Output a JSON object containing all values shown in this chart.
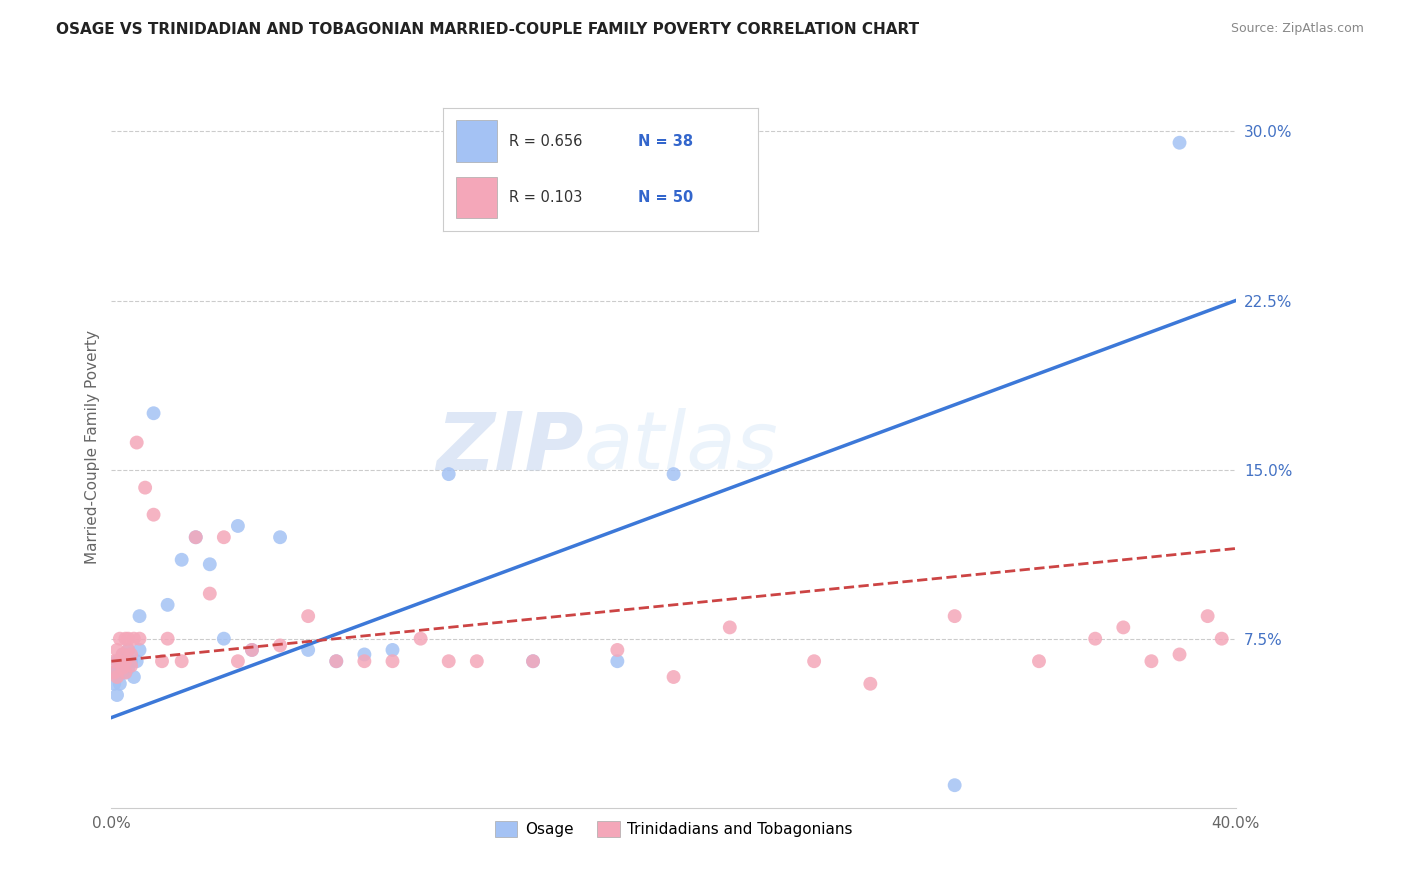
{
  "title": "OSAGE VS TRINIDADIAN AND TOBAGONIAN MARRIED-COUPLE FAMILY POVERTY CORRELATION CHART",
  "source": "Source: ZipAtlas.com",
  "ylabel": "Married-Couple Family Poverty",
  "xlim": [
    0.0,
    0.4
  ],
  "ylim": [
    0.0,
    0.32
  ],
  "y_ticks_right": [
    0.075,
    0.15,
    0.225,
    0.3
  ],
  "y_tick_labels_right": [
    "7.5%",
    "15.0%",
    "22.5%",
    "30.0%"
  ],
  "blue_color": "#a4c2f4",
  "pink_color": "#f4a7b9",
  "blue_line_color": "#3c78d8",
  "pink_line_color": "#cc4444",
  "watermark": "ZIPAtlas",
  "osage_x": [
    0.001,
    0.001,
    0.002,
    0.002,
    0.002,
    0.003,
    0.003,
    0.003,
    0.004,
    0.004,
    0.005,
    0.005,
    0.006,
    0.006,
    0.007,
    0.008,
    0.009,
    0.01,
    0.01,
    0.015,
    0.02,
    0.025,
    0.03,
    0.035,
    0.04,
    0.045,
    0.05,
    0.06,
    0.07,
    0.08,
    0.09,
    0.1,
    0.12,
    0.15,
    0.18,
    0.2,
    0.3,
    0.38
  ],
  "osage_y": [
    0.055,
    0.06,
    0.05,
    0.06,
    0.065,
    0.055,
    0.06,
    0.065,
    0.06,
    0.068,
    0.06,
    0.065,
    0.062,
    0.07,
    0.065,
    0.058,
    0.065,
    0.07,
    0.085,
    0.175,
    0.09,
    0.11,
    0.12,
    0.108,
    0.075,
    0.125,
    0.07,
    0.12,
    0.07,
    0.065,
    0.068,
    0.07,
    0.148,
    0.065,
    0.065,
    0.148,
    0.01,
    0.295
  ],
  "tnt_x": [
    0.001,
    0.001,
    0.002,
    0.002,
    0.003,
    0.003,
    0.004,
    0.004,
    0.005,
    0.005,
    0.005,
    0.006,
    0.006,
    0.007,
    0.007,
    0.008,
    0.009,
    0.01,
    0.012,
    0.015,
    0.018,
    0.02,
    0.025,
    0.03,
    0.035,
    0.04,
    0.045,
    0.05,
    0.06,
    0.07,
    0.08,
    0.09,
    0.1,
    0.11,
    0.12,
    0.13,
    0.15,
    0.18,
    0.2,
    0.22,
    0.25,
    0.27,
    0.3,
    0.33,
    0.35,
    0.36,
    0.37,
    0.38,
    0.39,
    0.395
  ],
  "tnt_y": [
    0.06,
    0.065,
    0.07,
    0.058,
    0.065,
    0.075,
    0.062,
    0.068,
    0.065,
    0.075,
    0.06,
    0.07,
    0.075,
    0.063,
    0.068,
    0.075,
    0.162,
    0.075,
    0.142,
    0.13,
    0.065,
    0.075,
    0.065,
    0.12,
    0.095,
    0.12,
    0.065,
    0.07,
    0.072,
    0.085,
    0.065,
    0.065,
    0.065,
    0.075,
    0.065,
    0.065,
    0.065,
    0.07,
    0.058,
    0.08,
    0.065,
    0.055,
    0.085,
    0.065,
    0.075,
    0.08,
    0.065,
    0.068,
    0.085,
    0.075
  ]
}
